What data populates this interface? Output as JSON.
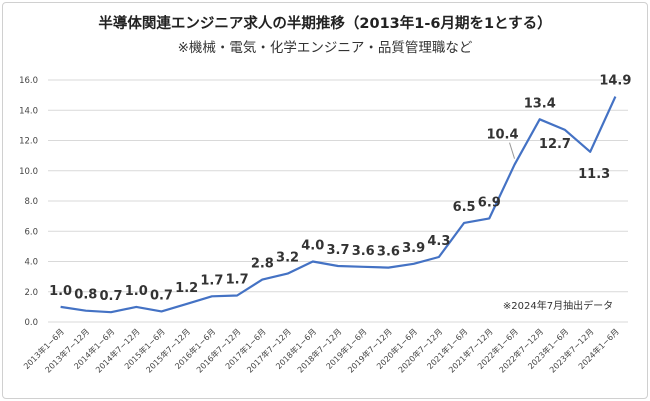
{
  "chart_data": {
    "type": "line",
    "title": "半導体関連エンジニア求人の半期推移（2013年1-6月期を1とする）",
    "subtitle": "※機械・電気・化学エンジニア・品質管理職など",
    "note": "※2024年7月抽出データ",
    "categories": [
      "2013年1−6月",
      "2013年7−12月",
      "2014年1−6月",
      "2014年7−12月",
      "2015年1−6月",
      "2015年7−12月",
      "2016年1−6月",
      "2016年7−12月",
      "2017年1−6月",
      "2017年7−12月",
      "2018年1−6月",
      "2018年7−12月",
      "2019年1−6月",
      "2019年7−12月",
      "2020年1−6月",
      "2020年7−12月",
      "2021年1−6月",
      "2021年7−12月",
      "2022年1−6月",
      "2022年7−12月",
      "2023年1−6月",
      "2023年7−12月",
      "2024年1−6月"
    ],
    "values": [
      1.0,
      0.75,
      0.65,
      1.0,
      0.7,
      1.2,
      1.7,
      1.75,
      2.8,
      3.2,
      4.0,
      3.7,
      3.65,
      3.6,
      3.85,
      4.3,
      6.55,
      6.85,
      10.4,
      13.4,
      12.7,
      11.25,
      14.9
    ],
    "data_labels": [
      "1.0",
      "0.8",
      "0.7",
      "1.0",
      "0.7",
      "1.2",
      "1.7",
      "1.7",
      "2.8",
      "3.2",
      "4.0",
      "3.7",
      "3.6",
      "3.6",
      "3.9",
      "4.3",
      "6.5",
      "6.9",
      "10.4",
      "13.4",
      "12.7",
      "11.3",
      "14.9"
    ],
    "ylim": [
      0,
      16
    ],
    "yticks": [
      "0.0",
      "2.0",
      "4.0",
      "6.0",
      "8.0",
      "10.0",
      "12.0",
      "14.0",
      "16.0"
    ],
    "grid": true,
    "line_color": "#4472c4",
    "grid_color": "#d9d9d9"
  }
}
